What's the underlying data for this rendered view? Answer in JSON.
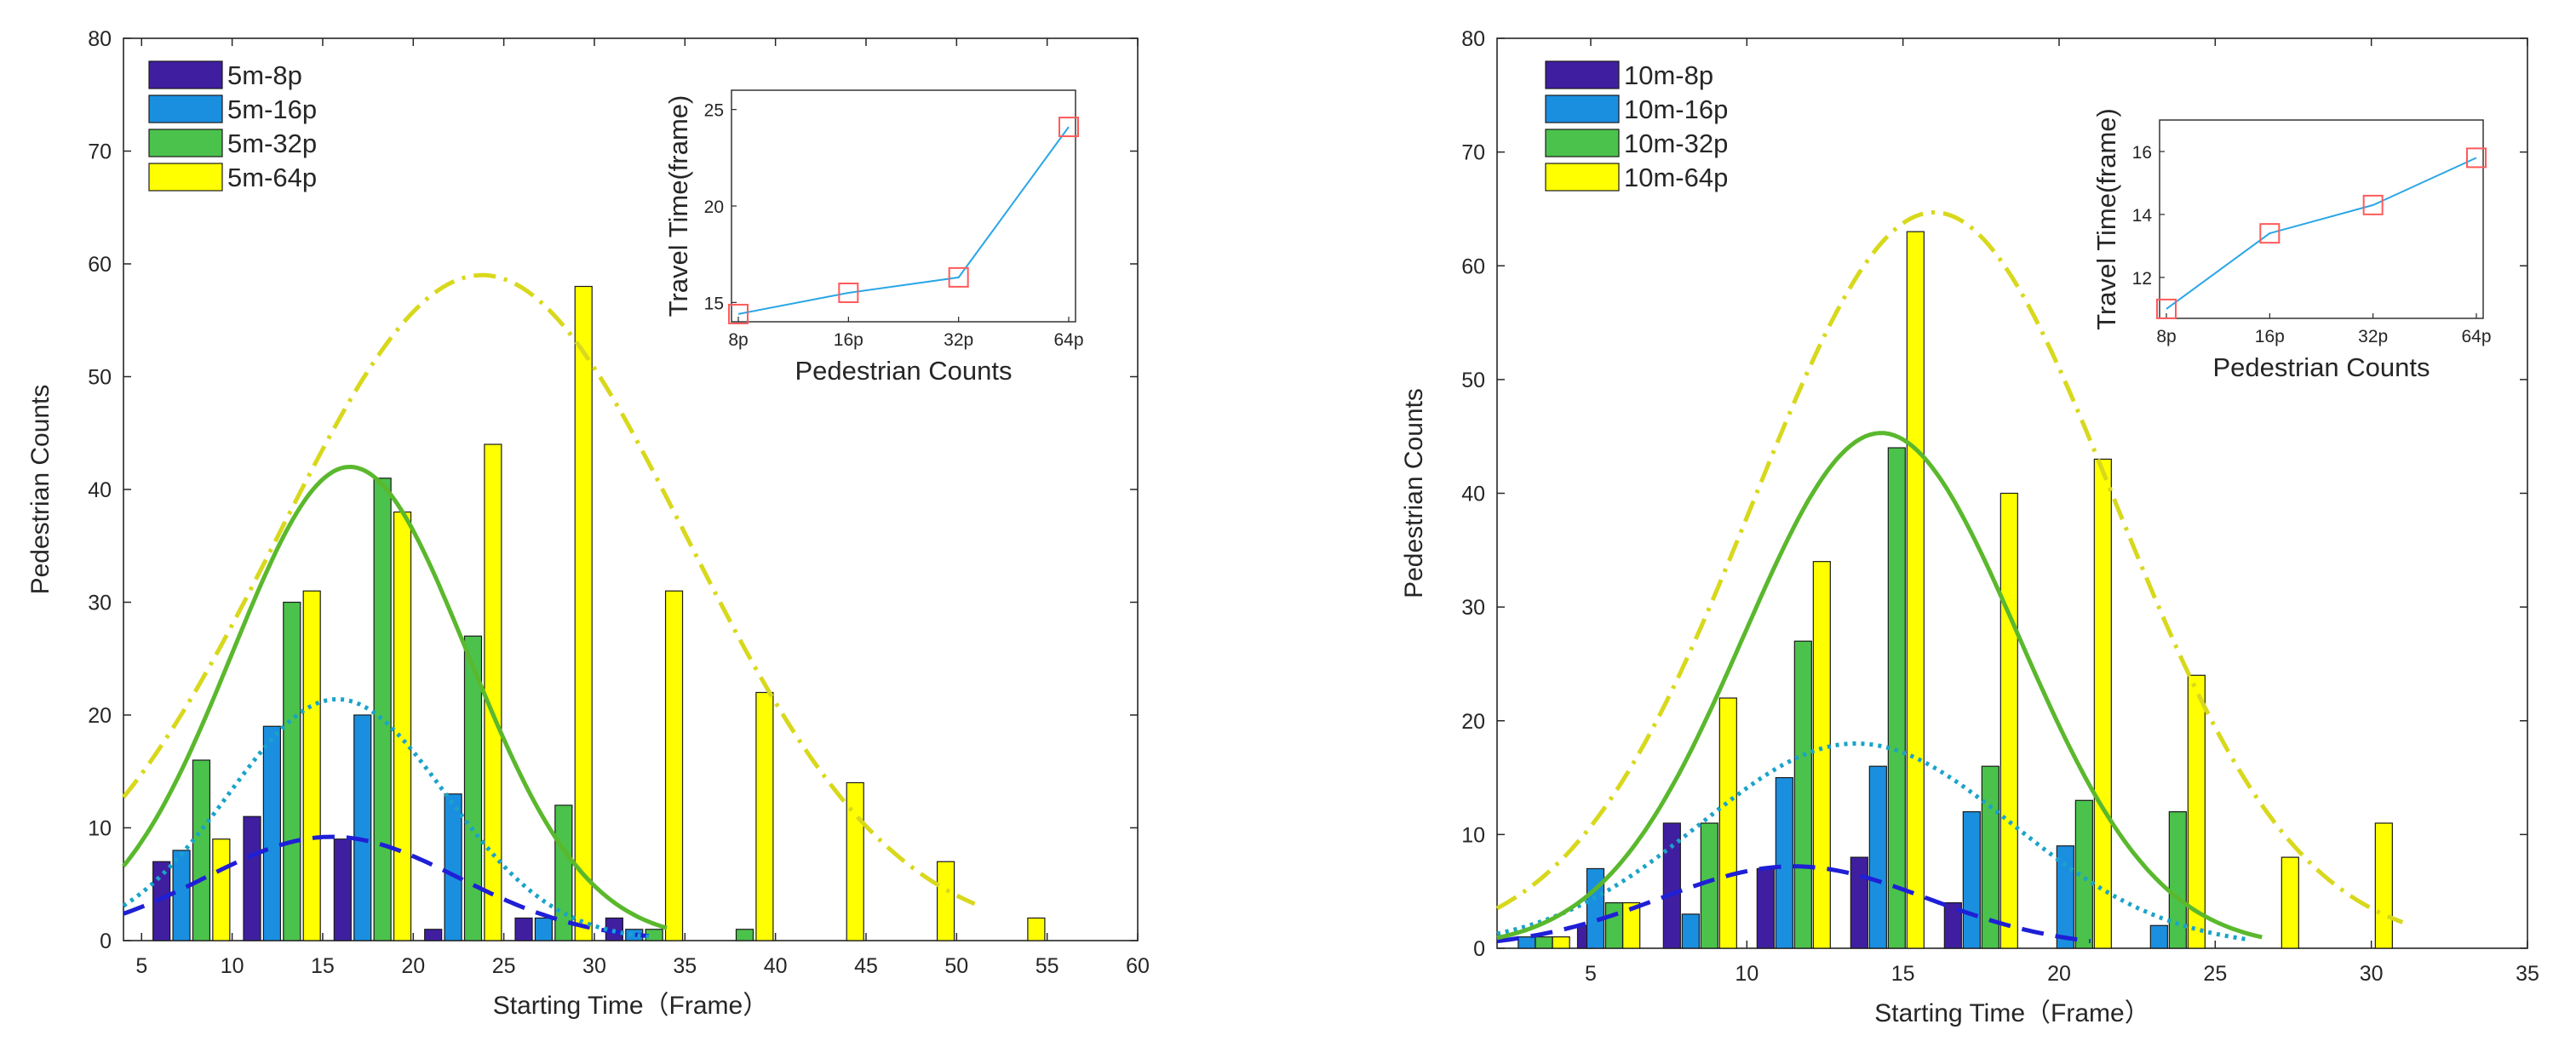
{
  "chart_data": [
    {
      "type": "bar",
      "id": "5m",
      "xlabel": "Starting Time（Frame）",
      "ylabel": "Pedestrian Counts",
      "xlim": [
        4,
        60
      ],
      "ylim": [
        0,
        80
      ],
      "xticks": [
        5,
        10,
        15,
        20,
        25,
        30,
        35,
        40,
        45,
        50,
        55,
        60
      ],
      "yticks": [
        0,
        10,
        20,
        30,
        40,
        50,
        60,
        70,
        80
      ],
      "legend_position": "top-left",
      "series": [
        {
          "name": "5m-8p",
          "color": "#3f1fa0",
          "x": [
            6.1,
            11.1,
            16.1,
            21.1,
            26.1,
            31.1,
            36.1,
            41.1,
            46.1,
            51.1
          ],
          "values": [
            7,
            11,
            9,
            1,
            2,
            2,
            0,
            0,
            0,
            0
          ]
        },
        {
          "name": "5m-16p",
          "color": "#1a8fe0",
          "x": [
            7.2,
            12.2,
            17.2,
            22.2,
            27.2,
            32.2,
            37.2,
            42.2,
            47.2,
            52.2
          ],
          "values": [
            8,
            19,
            20,
            13,
            2,
            1,
            0,
            0,
            0,
            0
          ]
        },
        {
          "name": "5m-32p",
          "color": "#4bc24b",
          "x": [
            8.3,
            13.3,
            18.3,
            23.3,
            28.3,
            33.3,
            38.3,
            43.3,
            48.3,
            53.3
          ],
          "values": [
            16,
            30,
            41,
            27,
            12,
            1,
            1,
            0,
            0,
            0
          ]
        },
        {
          "name": "5m-64p",
          "color": "#ffff00",
          "x": [
            9.4,
            14.4,
            19.4,
            24.4,
            29.4,
            34.4,
            39.4,
            44.4,
            49.4,
            54.4
          ],
          "values": [
            9,
            31,
            38,
            44,
            58,
            31,
            22,
            14,
            7,
            2
          ]
        }
      ],
      "fits": [
        {
          "series": "5m-8p",
          "style": "dashed",
          "color": "#1f1fd6",
          "peak": 9.2,
          "mean": 15.5,
          "sd": 7.0,
          "range": [
            4,
            33
          ]
        },
        {
          "series": "5m-16p",
          "style": "dotted",
          "color": "#1aa3c9",
          "peak": 21.4,
          "mean": 15.8,
          "sd": 6.0,
          "range": [
            4,
            33
          ]
        },
        {
          "series": "5m-32p",
          "style": "solid",
          "color": "#5ab82d",
          "peak": 42.0,
          "mean": 16.5,
          "sd": 6.5,
          "range": [
            4,
            34
          ]
        },
        {
          "series": "5m-64p",
          "style": "dashdot",
          "color": "#d8d81c",
          "peak": 59.0,
          "mean": 23.8,
          "sd": 11.3,
          "range": [
            4,
            51
          ]
        }
      ],
      "inset": {
        "xlabel": "Pedestrian Counts",
        "ylabel": "Travel Time(frame)",
        "categories": [
          "8p",
          "16p",
          "32p",
          "64p"
        ],
        "values": [
          14.4,
          15.5,
          16.3,
          24.1
        ],
        "ylim": [
          14,
          26
        ],
        "yticks": [
          15,
          20,
          25
        ],
        "line_color": "#2aa6e6",
        "marker_color": "#ff5a5a"
      }
    },
    {
      "type": "bar",
      "id": "10m",
      "xlabel": "Starting Time（Frame）",
      "ylabel": "Pedestrian Counts",
      "xlim": [
        2,
        35
      ],
      "ylim": [
        0,
        80
      ],
      "xticks": [
        5,
        10,
        15,
        20,
        25,
        30,
        35
      ],
      "yticks": [
        0,
        10,
        20,
        30,
        40,
        50,
        60,
        70,
        80
      ],
      "legend_position": "top-left",
      "series": [
        {
          "name": "10m-8p",
          "color": "#3f1fa0",
          "x": [
            2.4,
            4.85,
            7.6,
            10.6,
            13.6,
            16.6,
            19.6,
            22.6,
            25.6,
            28.6
          ],
          "values": [
            0,
            2,
            11,
            7,
            8,
            4,
            0,
            0,
            0,
            0
          ]
        },
        {
          "name": "10m-16p",
          "color": "#1a8fe0",
          "x": [
            2.95,
            5.15,
            8.2,
            11.2,
            14.2,
            17.2,
            20.2,
            23.2,
            26.2,
            29.2
          ],
          "values": [
            1,
            7,
            3,
            15,
            16,
            12,
            9,
            2,
            0,
            0
          ]
        },
        {
          "name": "10m-32p",
          "color": "#4bc24b",
          "x": [
            3.5,
            5.75,
            8.8,
            11.8,
            14.8,
            17.8,
            20.8,
            23.8,
            26.8,
            29.8
          ],
          "values": [
            1,
            4,
            11,
            27,
            44,
            16,
            13,
            12,
            0,
            0
          ]
        },
        {
          "name": "10m-64p",
          "color": "#ffff00",
          "x": [
            4.05,
            6.3,
            9.4,
            12.4,
            15.4,
            18.4,
            21.4,
            24.4,
            27.4,
            30.4
          ],
          "values": [
            1,
            4,
            22,
            34,
            63,
            40,
            43,
            24,
            8,
            11
          ]
        }
      ],
      "fits": [
        {
          "series": "10m-8p",
          "style": "dashed",
          "color": "#1f1fd6",
          "peak": 7.2,
          "mean": 11.5,
          "sd": 4.3,
          "range": [
            2,
            21
          ]
        },
        {
          "series": "10m-16p",
          "style": "dotted",
          "color": "#1aa3c9",
          "peak": 18.0,
          "mean": 13.5,
          "sd": 5.0,
          "range": [
            2,
            26
          ]
        },
        {
          "series": "10m-32p",
          "style": "solid",
          "color": "#5ab82d",
          "peak": 45.3,
          "mean": 14.3,
          "sd": 4.4,
          "range": [
            2,
            26.5
          ]
        },
        {
          "series": "10m-64p",
          "style": "dashdot",
          "color": "#d8d81c",
          "peak": 64.7,
          "mean": 16.0,
          "sd": 5.8,
          "range": [
            2,
            31
          ]
        }
      ],
      "inset": {
        "xlabel": "Pedestrian Counts",
        "ylabel": "Travel Time(frame)",
        "categories": [
          "8p",
          "16p",
          "32p",
          "64p"
        ],
        "values": [
          11.0,
          13.4,
          14.3,
          15.8
        ],
        "ylim": [
          10.7,
          17
        ],
        "yticks": [
          12,
          14,
          16
        ],
        "line_color": "#2aa6e6",
        "marker_color": "#ff5a5a"
      }
    }
  ]
}
